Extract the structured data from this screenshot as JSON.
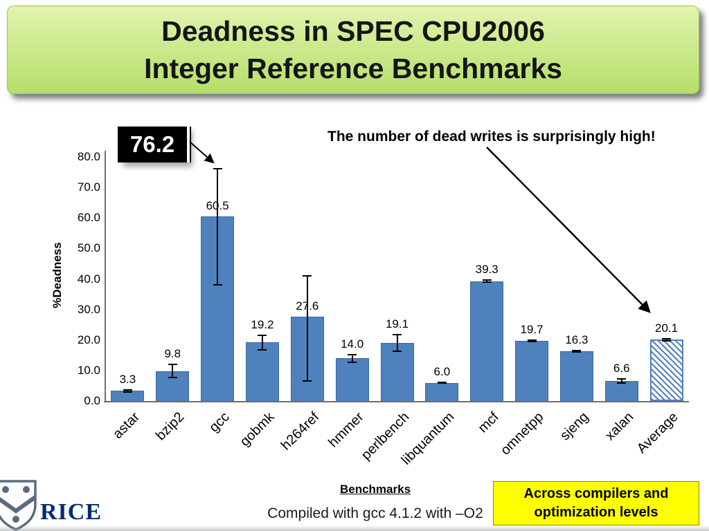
{
  "title": {
    "line1": "Deadness in SPEC CPU2006",
    "line2": "Integer Reference Benchmarks"
  },
  "chart_data": {
    "type": "bar",
    "categories": [
      "astar",
      "bzip2",
      "gcc",
      "gobmk",
      "h264ref",
      "hmmer",
      "perlbench",
      "libquantum",
      "mcf",
      "omnetpp",
      "sjeng",
      "xalan",
      "Average"
    ],
    "values": [
      3.3,
      9.8,
      60.5,
      19.2,
      27.6,
      14.0,
      19.1,
      6.0,
      39.3,
      19.7,
      16.3,
      6.6,
      20.1
    ],
    "error_lo": [
      2.9,
      7.6,
      38.0,
      16.8,
      6.5,
      12.8,
      16.3,
      5.8,
      39.0,
      19.4,
      16.0,
      5.9,
      19.8
    ],
    "error_hi": [
      3.7,
      12.0,
      76.2,
      21.6,
      41.0,
      15.2,
      21.8,
      6.2,
      39.6,
      20.0,
      16.6,
      7.3,
      20.4
    ],
    "ylabel": "%Deadness",
    "xlabel": "Benchmarks",
    "ylim": [
      0,
      80
    ],
    "ytick_step": 10,
    "bar_color": "#4f81bd",
    "hatched_categories": [
      "Average"
    ],
    "grid": false,
    "legend": false
  },
  "annotations": {
    "callout_value": "76.2",
    "note": "The number of dead writes is surprisingly high!"
  },
  "footer": {
    "caption": "Compiled with gcc 4.1.2 with –O2",
    "sidebar_note_line1": "Across compilers and",
    "sidebar_note_line2": "optimization levels",
    "logo_text": "RICE"
  },
  "colors": {
    "banner_green": "#c4e57e",
    "bar_blue": "#4f81bd",
    "note_yellow": "#ffff00",
    "logo_navy": "#002d72"
  }
}
